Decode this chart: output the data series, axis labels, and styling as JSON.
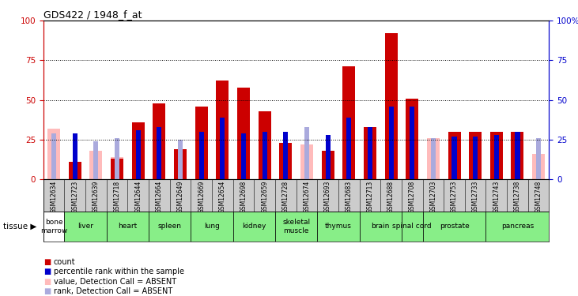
{
  "title": "GDS422 / 1948_f_at",
  "samples": [
    "GSM12634",
    "GSM12723",
    "GSM12639",
    "GSM12718",
    "GSM12644",
    "GSM12664",
    "GSM12649",
    "GSM12669",
    "GSM12654",
    "GSM12698",
    "GSM12659",
    "GSM12728",
    "GSM12674",
    "GSM12693",
    "GSM12683",
    "GSM12713",
    "GSM12688",
    "GSM12708",
    "GSM12703",
    "GSM12753",
    "GSM12733",
    "GSM12743",
    "GSM12738",
    "GSM12748"
  ],
  "tissue_spans": [
    {
      "tissue": "bone\nmarrow",
      "start": 0,
      "end": 1,
      "green": false
    },
    {
      "tissue": "liver",
      "start": 1,
      "end": 3,
      "green": true
    },
    {
      "tissue": "heart",
      "start": 3,
      "end": 5,
      "green": true
    },
    {
      "tissue": "spleen",
      "start": 5,
      "end": 7,
      "green": true
    },
    {
      "tissue": "lung",
      "start": 7,
      "end": 9,
      "green": true
    },
    {
      "tissue": "kidney",
      "start": 9,
      "end": 11,
      "green": true
    },
    {
      "tissue": "skeletal\nmuscle",
      "start": 11,
      "end": 13,
      "green": true
    },
    {
      "tissue": "thymus",
      "start": 13,
      "end": 15,
      "green": true
    },
    {
      "tissue": "brain",
      "start": 15,
      "end": 17,
      "green": true
    },
    {
      "tissue": "spinal cord",
      "start": 17,
      "end": 18,
      "green": true
    },
    {
      "tissue": "prostate",
      "start": 18,
      "end": 21,
      "green": true
    },
    {
      "tissue": "pancreas",
      "start": 21,
      "end": 24,
      "green": true
    }
  ],
  "red_values": [
    0,
    11,
    0,
    13,
    36,
    48,
    19,
    46,
    62,
    58,
    43,
    23,
    0,
    18,
    71,
    33,
    92,
    51,
    0,
    30,
    30,
    30,
    30,
    0
  ],
  "pink_values": [
    32,
    0,
    18,
    14,
    0,
    0,
    0,
    0,
    0,
    0,
    0,
    0,
    22,
    0,
    0,
    0,
    0,
    0,
    26,
    0,
    0,
    0,
    28,
    16
  ],
  "blue_values": [
    0,
    29,
    0,
    0,
    31,
    33,
    0,
    30,
    39,
    29,
    30,
    30,
    0,
    28,
    39,
    33,
    46,
    46,
    0,
    27,
    27,
    28,
    30,
    0
  ],
  "lblue_values": [
    29,
    0,
    24,
    26,
    0,
    0,
    25,
    0,
    0,
    0,
    0,
    0,
    33,
    0,
    0,
    0,
    0,
    0,
    26,
    0,
    0,
    0,
    25,
    26
  ],
  "red_color": "#cc0000",
  "pink_color": "#ffbbbb",
  "blue_color": "#0000cc",
  "lblue_color": "#aaaadd",
  "bar_width": 0.6,
  "tissue_bg_color": "#88ee88",
  "tissue_white_color": "#ffffff",
  "sample_bg_color": "#cccccc"
}
